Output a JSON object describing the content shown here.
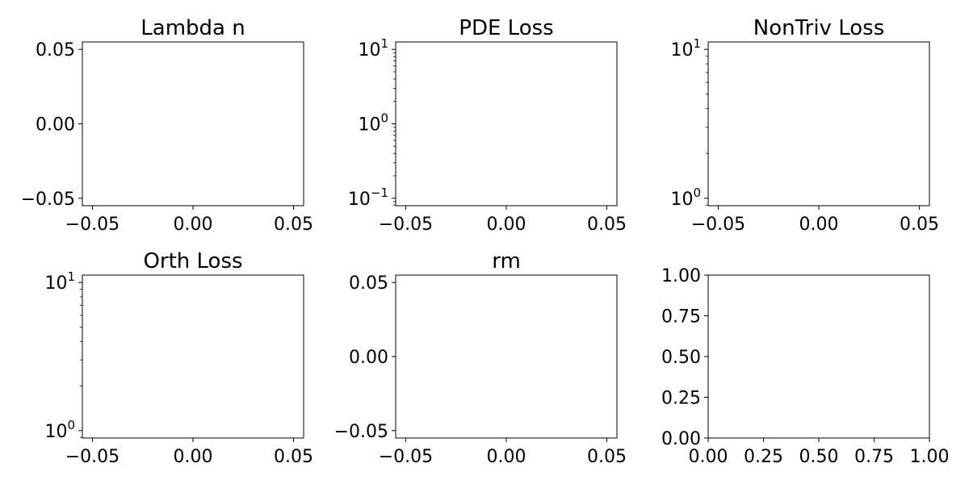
{
  "chart_data": [
    {
      "type": "line",
      "title": "Lambda n",
      "series": [],
      "x_ticks": [
        -0.05,
        0.0,
        0.05
      ],
      "x_tick_labels": [
        "−0.05",
        "0.00",
        "0.05"
      ],
      "xlim": [
        -0.055,
        0.055
      ],
      "yscale": "linear",
      "y_ticks": [
        -0.05,
        0.0,
        0.05
      ],
      "y_tick_labels": [
        "−0.05",
        "0.00",
        "0.05"
      ],
      "ylim": [
        -0.055,
        0.055
      ],
      "grid": false
    },
    {
      "type": "line",
      "title": "PDE Loss",
      "series": [],
      "x_ticks": [
        -0.05,
        0.0,
        0.05
      ],
      "x_tick_labels": [
        "−0.05",
        "0.00",
        "0.05"
      ],
      "xlim": [
        -0.055,
        0.055
      ],
      "yscale": "log",
      "y_ticks": [
        0.1,
        1,
        10
      ],
      "y_tick_labels": [
        {
          "base": "10",
          "exp": "−1"
        },
        {
          "base": "10",
          "exp": "0"
        },
        {
          "base": "10",
          "exp": "1"
        }
      ],
      "ylim": [
        0.0794,
        12.59
      ],
      "grid": false
    },
    {
      "type": "line",
      "title": "NonTriv Loss",
      "series": [],
      "x_ticks": [
        -0.05,
        0.0,
        0.05
      ],
      "x_tick_labels": [
        "−0.05",
        "0.00",
        "0.05"
      ],
      "xlim": [
        -0.055,
        0.055
      ],
      "yscale": "log",
      "y_ticks": [
        1,
        10
      ],
      "y_tick_labels": [
        {
          "base": "10",
          "exp": "0"
        },
        {
          "base": "10",
          "exp": "1"
        }
      ],
      "ylim": [
        0.891,
        11.22
      ],
      "grid": false
    },
    {
      "type": "line",
      "title": "Orth Loss",
      "series": [],
      "x_ticks": [
        -0.05,
        0.0,
        0.05
      ],
      "x_tick_labels": [
        "−0.05",
        "0.00",
        "0.05"
      ],
      "xlim": [
        -0.055,
        0.055
      ],
      "yscale": "log",
      "y_ticks": [
        1,
        10
      ],
      "y_tick_labels": [
        {
          "base": "10",
          "exp": "0"
        },
        {
          "base": "10",
          "exp": "1"
        }
      ],
      "ylim": [
        0.891,
        11.22
      ],
      "grid": false
    },
    {
      "type": "line",
      "title": "rm",
      "series": [],
      "x_ticks": [
        -0.05,
        0.0,
        0.05
      ],
      "x_tick_labels": [
        "−0.05",
        "0.00",
        "0.05"
      ],
      "xlim": [
        -0.055,
        0.055
      ],
      "yscale": "linear",
      "y_ticks": [
        -0.05,
        0.0,
        0.05
      ],
      "y_tick_labels": [
        "−0.05",
        "0.00",
        "0.05"
      ],
      "ylim": [
        -0.055,
        0.055
      ],
      "grid": false
    },
    {
      "type": "line",
      "title": "",
      "series": [],
      "x_ticks": [
        0,
        0.25,
        0.5,
        0.75,
        1.0
      ],
      "x_tick_labels": [
        "0.00",
        "0.25",
        "0.50",
        "0.75",
        "1.00"
      ],
      "xlim": [
        0,
        1
      ],
      "yscale": "linear",
      "y_ticks": [
        0,
        0.25,
        0.5,
        0.75,
        1.0
      ],
      "y_tick_labels": [
        "0.00",
        "0.25",
        "0.50",
        "0.75",
        "1.00"
      ],
      "ylim": [
        0,
        1
      ],
      "grid": false
    }
  ]
}
